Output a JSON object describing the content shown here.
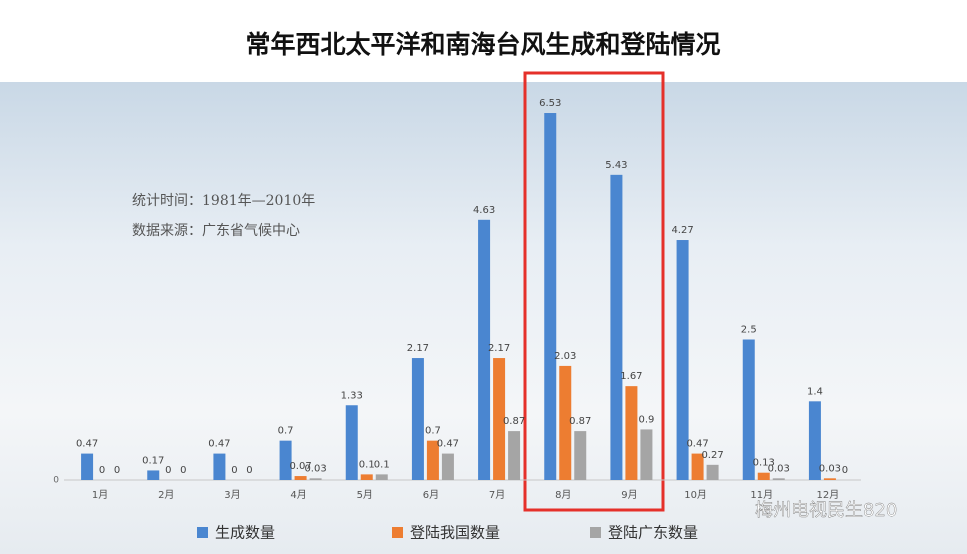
{
  "chart_data": {
    "type": "bar",
    "title": "常年西北太平洋和南海台风生成和登陆情况",
    "annotations": [
      "统计时间：1981年—2010年",
      "数据来源：广东省气候中心"
    ],
    "watermark": "梅州电视民生820",
    "categories": [
      "1月",
      "2月",
      "3月",
      "4月",
      "5月",
      "6月",
      "7月",
      "8月",
      "9月",
      "10月",
      "11月",
      "12月"
    ],
    "series": [
      {
        "name": "生成数量",
        "color": "#4a86d0",
        "values": [
          0.47,
          0.17,
          0.47,
          0.7,
          1.33,
          2.17,
          4.63,
          6.53,
          5.43,
          4.27,
          2.5,
          1.4
        ]
      },
      {
        "name": "登陆我国数量",
        "color": "#ed7d31",
        "values": [
          0,
          0,
          0,
          0.07,
          0.1,
          0.7,
          2.17,
          2.03,
          1.67,
          0.47,
          0.13,
          0.03
        ]
      },
      {
        "name": "登陆广东数量",
        "color": "#a5a5a5",
        "values": [
          0,
          0,
          0,
          0.03,
          0.1,
          0.47,
          0.87,
          0.87,
          0.9,
          0.27,
          0.03,
          0
        ]
      }
    ],
    "ylim": [
      0,
      7
    ],
    "yticks": [
      0
    ],
    "grid": false
  }
}
